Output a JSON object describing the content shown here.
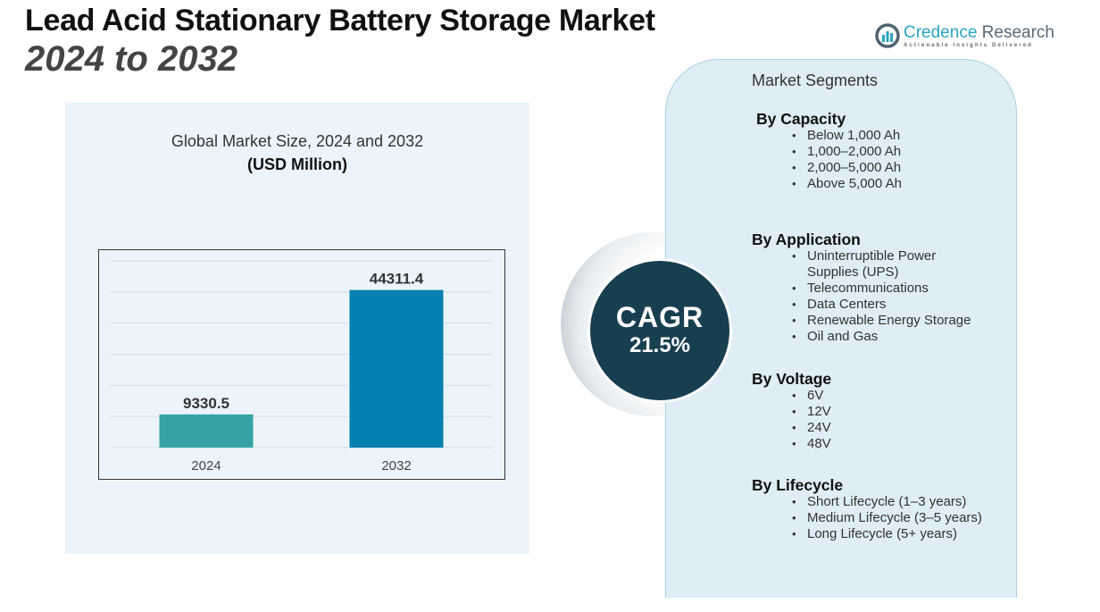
{
  "header": {
    "title_line1": "Lead Acid Stationary Battery Storage Market",
    "title_line2": "2024 to 2032"
  },
  "logo": {
    "icon": "bar-chart-circle-icon",
    "name_part1": "Credence",
    "name_part2": "Research",
    "tagline": "Actionable Insights Delivered",
    "colors": {
      "primary": "#2aa3c6",
      "secondary": "#5a6a78"
    }
  },
  "chart_data": {
    "type": "bar",
    "title": "Global Market Size, 2024 and 2032",
    "subtitle": "(USD Million)",
    "categories": [
      "2024",
      "2032"
    ],
    "values": [
      9330.5,
      44311.4
    ],
    "value_labels": [
      "9330.5",
      "44311.4"
    ],
    "colors": [
      "#35a3a4",
      "#0580b0"
    ],
    "xlabel": "",
    "ylabel": "",
    "ylim": [
      0,
      52500
    ],
    "grid": true,
    "gridline_count": 7,
    "legend": "none"
  },
  "cagr": {
    "label": "CAGR",
    "value": "21.5%",
    "color": "#173f50"
  },
  "segments": {
    "heading": "Market Segments",
    "groups": [
      {
        "title": "By Capacity",
        "items": [
          "Below 1,000 Ah",
          "1,000–2,000 Ah",
          "2,000–5,000 Ah",
          "Above 5,000 Ah"
        ]
      },
      {
        "title": "By Application",
        "items": [
          "Uninterruptible Power Supplies (UPS)",
          "Telecommunications",
          "Data Centers",
          "Renewable Energy Storage",
          "Oil and Gas"
        ]
      },
      {
        "title": "By Voltage",
        "items": [
          "6V",
          "12V",
          "24V",
          "48V"
        ]
      },
      {
        "title": "By Lifecycle",
        "items": [
          "Short Lifecycle (1–3 years)",
          "Medium Lifecycle (3–5 years)",
          "Long Lifecycle (5+ years)"
        ]
      }
    ]
  }
}
